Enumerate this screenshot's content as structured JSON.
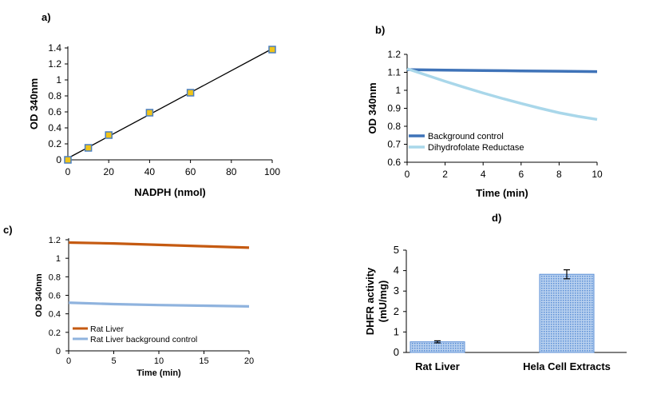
{
  "chart_data": [
    {
      "panel": "a)",
      "type": "scatter",
      "xlabel": "NADPH (nmol)",
      "ylabel": "OD 340nm",
      "xlim": [
        0,
        100
      ],
      "ylim": [
        0,
        1.4
      ],
      "x_ticks": [
        "0",
        "20",
        "40",
        "60",
        "80",
        "100"
      ],
      "y_ticks": [
        "0",
        "0.2",
        "0.4",
        "0.6",
        "0.8",
        "1",
        "1.2",
        "1.4"
      ],
      "points": [
        {
          "x": 0,
          "y": 0.0
        },
        {
          "x": 10,
          "y": 0.15
        },
        {
          "x": 20,
          "y": 0.31
        },
        {
          "x": 40,
          "y": 0.59
        },
        {
          "x": 60,
          "y": 0.84
        },
        {
          "x": 100,
          "y": 1.38
        }
      ],
      "fit": {
        "x": [
          0,
          100
        ],
        "y": [
          0.02,
          1.39
        ]
      },
      "colors": {
        "marker": "#f0c419",
        "edge": "#4a7fc1",
        "line": "#000000"
      }
    },
    {
      "panel": "b)",
      "type": "line",
      "xlabel": "Time (min)",
      "ylabel": "OD 340nm",
      "xlim": [
        0,
        10
      ],
      "ylim": [
        0.6,
        1.2
      ],
      "x_ticks": [
        "0",
        "2",
        "4",
        "6",
        "8",
        "10"
      ],
      "y_ticks": [
        "0.6",
        "0.7",
        "0.8",
        "0.9",
        "1",
        "1.1",
        "1.2"
      ],
      "legend": "lower-left",
      "series": [
        {
          "name": "Background control",
          "color": "#3f73b8",
          "x": [
            0,
            2,
            4,
            6,
            8,
            10
          ],
          "y": [
            1.115,
            1.112,
            1.11,
            1.108,
            1.106,
            1.104
          ]
        },
        {
          "name": "Dihydrofolate Reductase",
          "color": "#a9d7ea",
          "x": [
            0,
            1,
            2,
            3,
            4,
            5,
            6,
            7,
            8,
            9,
            10
          ],
          "y": [
            1.12,
            1.085,
            1.05,
            1.017,
            0.985,
            0.955,
            0.927,
            0.9,
            0.875,
            0.855,
            0.838
          ]
        }
      ]
    },
    {
      "panel": "c)",
      "type": "line",
      "xlabel": "Time (min)",
      "ylabel": "OD 340nm",
      "xlim": [
        0,
        20
      ],
      "ylim": [
        0,
        1.2
      ],
      "x_ticks": [
        "0",
        "5",
        "10",
        "15",
        "20"
      ],
      "y_ticks": [
        "0",
        "0.2",
        "0.4",
        "0.6",
        "0.8",
        "1",
        "1.2"
      ],
      "legend": "lower-left",
      "series": [
        {
          "name": "Rat Liver",
          "color": "#c55a11",
          "x": [
            0,
            5,
            10,
            15,
            20
          ],
          "y": [
            1.17,
            1.16,
            1.145,
            1.13,
            1.115
          ]
        },
        {
          "name": "Rat Liver background control",
          "color": "#8fb3de",
          "x": [
            0,
            5,
            10,
            15,
            20
          ],
          "y": [
            0.52,
            0.505,
            0.495,
            0.488,
            0.48
          ]
        }
      ]
    },
    {
      "panel": "d)",
      "type": "bar",
      "ylabel": "DHFR activity\n(mU/mg)",
      "ylim": [
        0,
        5
      ],
      "y_ticks": [
        "0",
        "1",
        "2",
        "3",
        "4",
        "5"
      ],
      "categories": [
        "Rat Liver",
        "Hela Cell Extracts"
      ],
      "values": [
        0.52,
        3.82
      ],
      "errors": [
        0.05,
        0.22
      ],
      "colors": {
        "bar": "#5b8fd6",
        "bar_light": "#b9d1ef"
      }
    }
  ]
}
